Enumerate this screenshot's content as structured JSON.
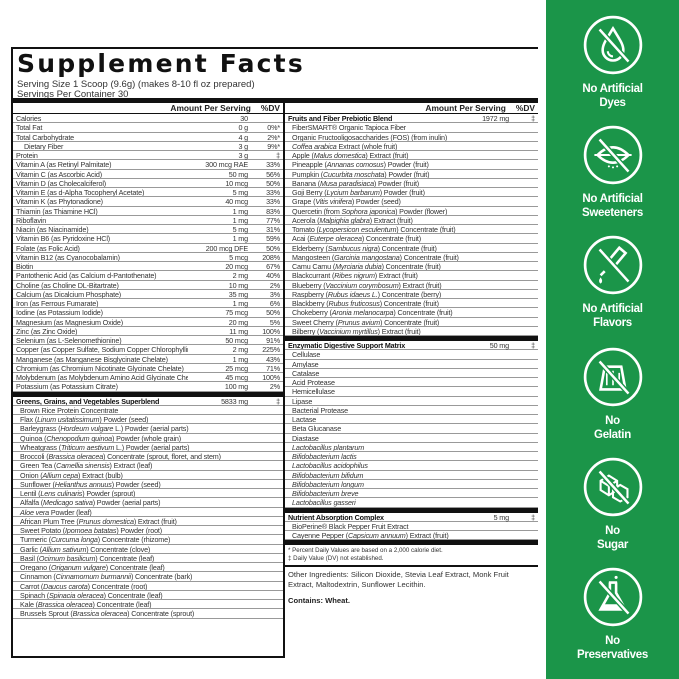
{
  "title": "Supplement Facts",
  "serving_size": "Serving Size 1 Scoop (9.6g) (makes 8-10 fl oz prepared)",
  "servings_per_container": "Servings Per Container 30",
  "header": {
    "amount": "Amount Per Serving",
    "dv": "%DV"
  },
  "nutrients": [
    {
      "name": "Calories",
      "amt": "30",
      "dv": ""
    },
    {
      "name": "Total Fat",
      "amt": "0 g",
      "dv": "0%*"
    },
    {
      "name": "Total Carbohydrate",
      "amt": "4 g",
      "dv": "2%*"
    },
    {
      "name": "Dietary Fiber",
      "amt": "3 g",
      "dv": "9%*",
      "sub": true
    },
    {
      "name": "Protein",
      "amt": "3 g",
      "dv": "‡"
    },
    {
      "name": "Vitamin A (as Retinyl Palmitate)",
      "amt": "300 mcg RAE",
      "dv": "33%"
    },
    {
      "name": "Vitamin C (as Ascorbic Acid)",
      "amt": "50 mg",
      "dv": "56%"
    },
    {
      "name": "Vitamin D (as Cholecalciferol)",
      "amt": "10 mcg",
      "dv": "50%"
    },
    {
      "name": "Vitamin E (as d-Alpha Tocopheryl Acetate)",
      "amt": "5 mg",
      "dv": "33%"
    },
    {
      "name": "Vitamin K (as Phytonadione)",
      "amt": "40 mcg",
      "dv": "33%"
    },
    {
      "name": "Thiamin (as Thiamine HCl)",
      "amt": "1 mg",
      "dv": "83%"
    },
    {
      "name": "Riboflavin",
      "amt": "1 mg",
      "dv": "77%"
    },
    {
      "name": "Niacin (as Niacinamide)",
      "amt": "5 mg",
      "dv": "31%"
    },
    {
      "name": "Vitamin B6 (as Pyridoxine HCl)",
      "amt": "1 mg",
      "dv": "59%"
    },
    {
      "name": "Folate (as Folic Acid)",
      "amt": "200 mcg DFE",
      "dv": "50%"
    },
    {
      "name": "Vitamin B12 (as Cyanocobalamin)",
      "amt": "5 mcg",
      "dv": "208%"
    },
    {
      "name": "Biotin",
      "amt": "20 mcg",
      "dv": "67%"
    },
    {
      "name": "Pantothenic Acid (as Calcium d-Pantothenate)",
      "amt": "2 mg",
      "dv": "40%"
    },
    {
      "name": "Choline (as Choline DL-Bitartrate)",
      "amt": "10 mg",
      "dv": "2%"
    },
    {
      "name": "Calcium (as Dicalcium Phosphate)",
      "amt": "35 mg",
      "dv": "3%"
    },
    {
      "name": "Iron (as Ferrous Fumarate)",
      "amt": "1 mg",
      "dv": "6%"
    },
    {
      "name": "Iodine (as Potassium Iodide)",
      "amt": "75 mcg",
      "dv": "50%"
    },
    {
      "name": "Magnesium (as Magnesium Oxide)",
      "amt": "20 mg",
      "dv": "5%"
    },
    {
      "name": "Zinc (as Zinc Oxide)",
      "amt": "11 mg",
      "dv": "100%"
    },
    {
      "name": "Selenium (as L-Selenomethionine)",
      "amt": "50 mcg",
      "dv": "91%"
    },
    {
      "name": "Copper (as Copper Sulfate, Sodium Copper Chlorophyllin)",
      "amt": "2 mg",
      "dv": "225%"
    },
    {
      "name": "Manganese (as Manganese Bisglycinate Chelate)",
      "amt": "1 mg",
      "dv": "43%"
    },
    {
      "name": "Chromium (as Chromium Nicotinate Glycinate Chelate)",
      "amt": "25 mcg",
      "dv": "71%"
    },
    {
      "name": "Molybdenum (as Molybdenum Amino Acid Glycinate Chelate)",
      "amt": "45 mcg",
      "dv": "100%"
    },
    {
      "name": "Potassium (as Potassium Citrate)",
      "amt": "100 mg",
      "dv": "2%"
    }
  ],
  "greens": {
    "name": "Greens, Grains, and Vegetables Superblend",
    "amt": "5833 mg",
    "dv": "‡",
    "items": [
      {
        "pre": "Brown Rice Protein Concentrate"
      },
      {
        "pre": "Flax (",
        "it": "Linum usitatissimum",
        "post": ") Powder (seed)"
      },
      {
        "pre": "Barleygrass (",
        "it": "Hordeum vulgare",
        "post": " L.) Powder (aerial parts)"
      },
      {
        "pre": "Quinoa (",
        "it": "Chenopodium quinoa",
        "post": ") Powder (whole grain)"
      },
      {
        "pre": "Wheatgrass (",
        "it": "Triticum aestivum",
        "post": " L.) Powder (aerial parts)"
      },
      {
        "pre": "Broccoli (",
        "it": "Brassica oleracea",
        "post": ") Concentrate (sprout, floret, and stem)"
      },
      {
        "pre": "Green Tea (",
        "it": "Camellia sinensis",
        "post": ") Extract (leaf)"
      },
      {
        "pre": "Onion (",
        "it": "Allium cepa",
        "post": ") Extract (bulb)"
      },
      {
        "pre": "Sunflower (",
        "it": "Helianthus annuus",
        "post": ") Powder (seed)"
      },
      {
        "pre": "Lentil (",
        "it": "Lens culinaris",
        "post": ") Powder (sprout)"
      },
      {
        "pre": "Alfalfa (",
        "it": "Medicago sativa",
        "post": ") Powder (aerial parts)"
      },
      {
        "pre": "",
        "it": "Aloe vera",
        "post": " Powder (leaf)"
      },
      {
        "pre": "African Plum Tree (",
        "it": "Prunus domestica",
        "post": ") Extract (fruit)"
      },
      {
        "pre": "Sweet Potato (",
        "it": "Ipomoea batatas",
        "post": ") Powder (root)"
      },
      {
        "pre": "Turmeric (",
        "it": "Curcuma longa",
        "post": ") Concentrate (rhizome)"
      },
      {
        "pre": "Garlic (",
        "it": "Allium sativum",
        "post": ") Concentrate (clove)"
      },
      {
        "pre": "Basil (",
        "it": "Ocimum basilicum",
        "post": ") Concentrate (leaf)"
      },
      {
        "pre": "Oregano (",
        "it": "Origanum vulgare",
        "post": ") Concentrate (leaf)"
      },
      {
        "pre": "Cinnamon (",
        "it": "Cinnamomum burmannii",
        "post": ") Concentrate (bark)"
      },
      {
        "pre": "Carrot (",
        "it": "Daucus carota",
        "post": ") Concentrate (root)"
      },
      {
        "pre": "Spinach (",
        "it": "Spinacia oleracea",
        "post": ") Concentrate (leaf)"
      },
      {
        "pre": "Kale (",
        "it": "Brassica oleracea",
        "post": ") Concentrate (leaf)"
      },
      {
        "pre": "Brussels Sprout (",
        "it": "Brassica oleracea",
        "post": ") Concentrate (sprout)"
      }
    ]
  },
  "fruits": {
    "name": "Fruits and Fiber Prebiotic Blend",
    "amt": "1972 mg",
    "dv": "‡",
    "items": [
      {
        "pre": "FiberSMART® Organic Tapioca Fiber"
      },
      {
        "pre": "Organic Fructooligosaccharides (FOS) (from inulin)"
      },
      {
        "pre": "",
        "it": "Coffea arabica",
        "post": " Extract (whole fruit)"
      },
      {
        "pre": "Apple (",
        "it": "Malus domestica",
        "post": ") Extract (fruit)"
      },
      {
        "pre": "Pineapple (",
        "it": "Annanas comosus",
        "post": ") Powder (fruit)"
      },
      {
        "pre": "Pumpkin (",
        "it": "Cucurbita moschata",
        "post": ") Powder (fruit)"
      },
      {
        "pre": "Banana (",
        "it": "Musa paradisiaca",
        "post": ") Powder (fruit)"
      },
      {
        "pre": "Goji Berry (",
        "it": "Lycium barbarum",
        "post": ") Powder (fruit)"
      },
      {
        "pre": "Grape (",
        "it": "Vitis vinifera",
        "post": ") Powder (seed)"
      },
      {
        "pre": "Quercetin (from ",
        "it": "Sophora japonica",
        "post": ") Powder (flower)"
      },
      {
        "pre": "Acerola (",
        "it": "Malpighia glabra",
        "post": ") Extract (fruit)"
      },
      {
        "pre": "Tomato (",
        "it": "Lycopersicon esculentum",
        "post": ") Concentrate (fruit)"
      },
      {
        "pre": "Acai (",
        "it": "Euterpe oleracea",
        "post": ") Concentrate (fruit)"
      },
      {
        "pre": "Elderberry (",
        "it": "Sambucus nigra",
        "post": ") Concentrate (fruit)"
      },
      {
        "pre": "Mangosteen (",
        "it": "Garcinia mangostana",
        "post": ") Concentrate (fruit)"
      },
      {
        "pre": "Camu Camu (",
        "it": "Myrciaria dubia",
        "post": ") Concentrate (fruit)"
      },
      {
        "pre": "Blackcurrant (",
        "it": "Ribes nigrum",
        "post": ") Extract (fruit)"
      },
      {
        "pre": "Blueberry (",
        "it": "Vaccinium corymbosum",
        "post": ") Extract (fruit)"
      },
      {
        "pre": "Raspberry (",
        "it": "Rubus idaeus L.",
        "post": ") Concentrate (berry)"
      },
      {
        "pre": "Blackberry (",
        "it": "Rubus fruticosus",
        "post": ") Concentrate (fruit)"
      },
      {
        "pre": "Chokeberry (",
        "it": "Aronia melanocarpa",
        "post": ") Concentrate (fruit)"
      },
      {
        "pre": "Sweet Cherry (",
        "it": "Prunus avium",
        "post": ") Concentrate (fruit)"
      },
      {
        "pre": "Bilberry (",
        "it": "Vaccinium myrtillus",
        "post": ") Extract (fruit)"
      }
    ]
  },
  "enzymes": {
    "name": "Enzymatic Digestive Support Matrix",
    "amt": "50 mg",
    "dv": "‡",
    "items": [
      {
        "pre": "Cellulase"
      },
      {
        "pre": "Amylase"
      },
      {
        "pre": "Catalase"
      },
      {
        "pre": "Acid Protease"
      },
      {
        "pre": "Hemicellulase"
      },
      {
        "pre": "Lipase"
      },
      {
        "pre": "Bacterial Protease"
      },
      {
        "pre": "Lactase"
      },
      {
        "pre": "Beta Glucanase"
      },
      {
        "pre": "Diastase"
      },
      {
        "pre": "",
        "it": "Lactobacillus plantarum"
      },
      {
        "pre": "",
        "it": "Bifidobacterium lactis"
      },
      {
        "pre": "",
        "it": "Lactobacillus acidophilus"
      },
      {
        "pre": "",
        "it": "Bifidobacterium bifidum"
      },
      {
        "pre": "",
        "it": "Bifidobacterium longum"
      },
      {
        "pre": "",
        "it": "Bifidobacterium breve"
      },
      {
        "pre": "",
        "it": "Lactobacillus gasseri"
      }
    ]
  },
  "absorption": {
    "name": "Nutrient Absorption Complex",
    "amt": "5 mg",
    "dv": "‡",
    "items": [
      {
        "pre": "BioPerine® Black Pepper Fruit Extract"
      },
      {
        "pre": "Cayenne Pepper (",
        "it": "Capsicum annuum",
        "post": ") Extract (fruit)"
      }
    ]
  },
  "footnotes": [
    "* Percent Daily Values are based on a 2,000 calorie diet.",
    "‡ Daily Value (DV) not established."
  ],
  "other_ingredients": "Other Ingredients: Silicon Dioxide, Stevia Leaf Extract, Monk Fruit Extract, Maltodextrin, Sunflower Lecithin.",
  "contains": "Contains: Wheat.",
  "sidebar": {
    "color": "#1b9549",
    "badges": [
      {
        "icon": "no-dyes-icon",
        "line1": "No Artificial",
        "line2": "Dyes"
      },
      {
        "icon": "no-sweeteners-icon",
        "line1": "No Artificial",
        "line2": "Sweeteners"
      },
      {
        "icon": "no-flavors-icon",
        "line1": "No Artificial",
        "line2": "Flavors"
      },
      {
        "icon": "no-gelatin-icon",
        "line1": "No",
        "line2": "Gelatin"
      },
      {
        "icon": "no-sugar-icon",
        "line1": "No",
        "line2": "Sugar"
      },
      {
        "icon": "no-preservatives-icon",
        "line1": "No",
        "line2": "Preservatives"
      }
    ]
  }
}
